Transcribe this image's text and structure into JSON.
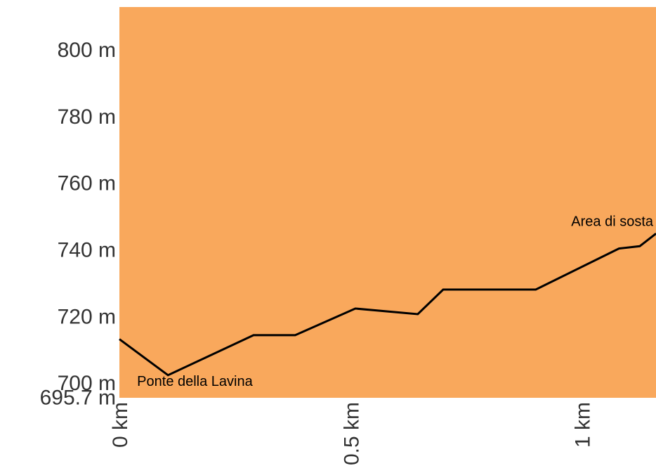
{
  "chart_data": {
    "type": "line",
    "title": "",
    "xlabel": "",
    "ylabel": "",
    "xlim": [
      0,
      1.16
    ],
    "ylim": [
      695.7,
      813
    ],
    "grid": false,
    "y_ticks": [
      {
        "value": 800,
        "label": "800 m"
      },
      {
        "value": 780,
        "label": "780 m"
      },
      {
        "value": 760,
        "label": "760 m"
      },
      {
        "value": 740,
        "label": "740 m"
      },
      {
        "value": 720,
        "label": "720 m"
      },
      {
        "value": 700,
        "label": "700 m"
      },
      {
        "value": 695.7,
        "label": "695.7 m"
      }
    ],
    "x_ticks": [
      {
        "value": 0,
        "label": "0 km"
      },
      {
        "value": 0.5,
        "label": "0.5 km"
      },
      {
        "value": 1,
        "label": "1 km"
      }
    ],
    "series": [
      {
        "x": [
          0,
          0.105,
          0.29,
          0.38,
          0.51,
          0.645,
          0.7,
          0.9,
          1.08,
          1.125,
          1.16
        ],
        "y": [
          713.3,
          702.5,
          714.5,
          714.5,
          722.5,
          720.8,
          728.2,
          728.2,
          740.5,
          741.2,
          745
        ]
      }
    ],
    "annotations": [
      {
        "text": "Ponte della Lavina",
        "x": 0.02,
        "y": 700.5
      },
      {
        "text": "Area di sosta",
        "x": 1.16,
        "y": 748.5
      }
    ],
    "colors": {
      "plot_background": "#f9a85c",
      "line": "#000000",
      "tick_text": "#333333"
    }
  }
}
